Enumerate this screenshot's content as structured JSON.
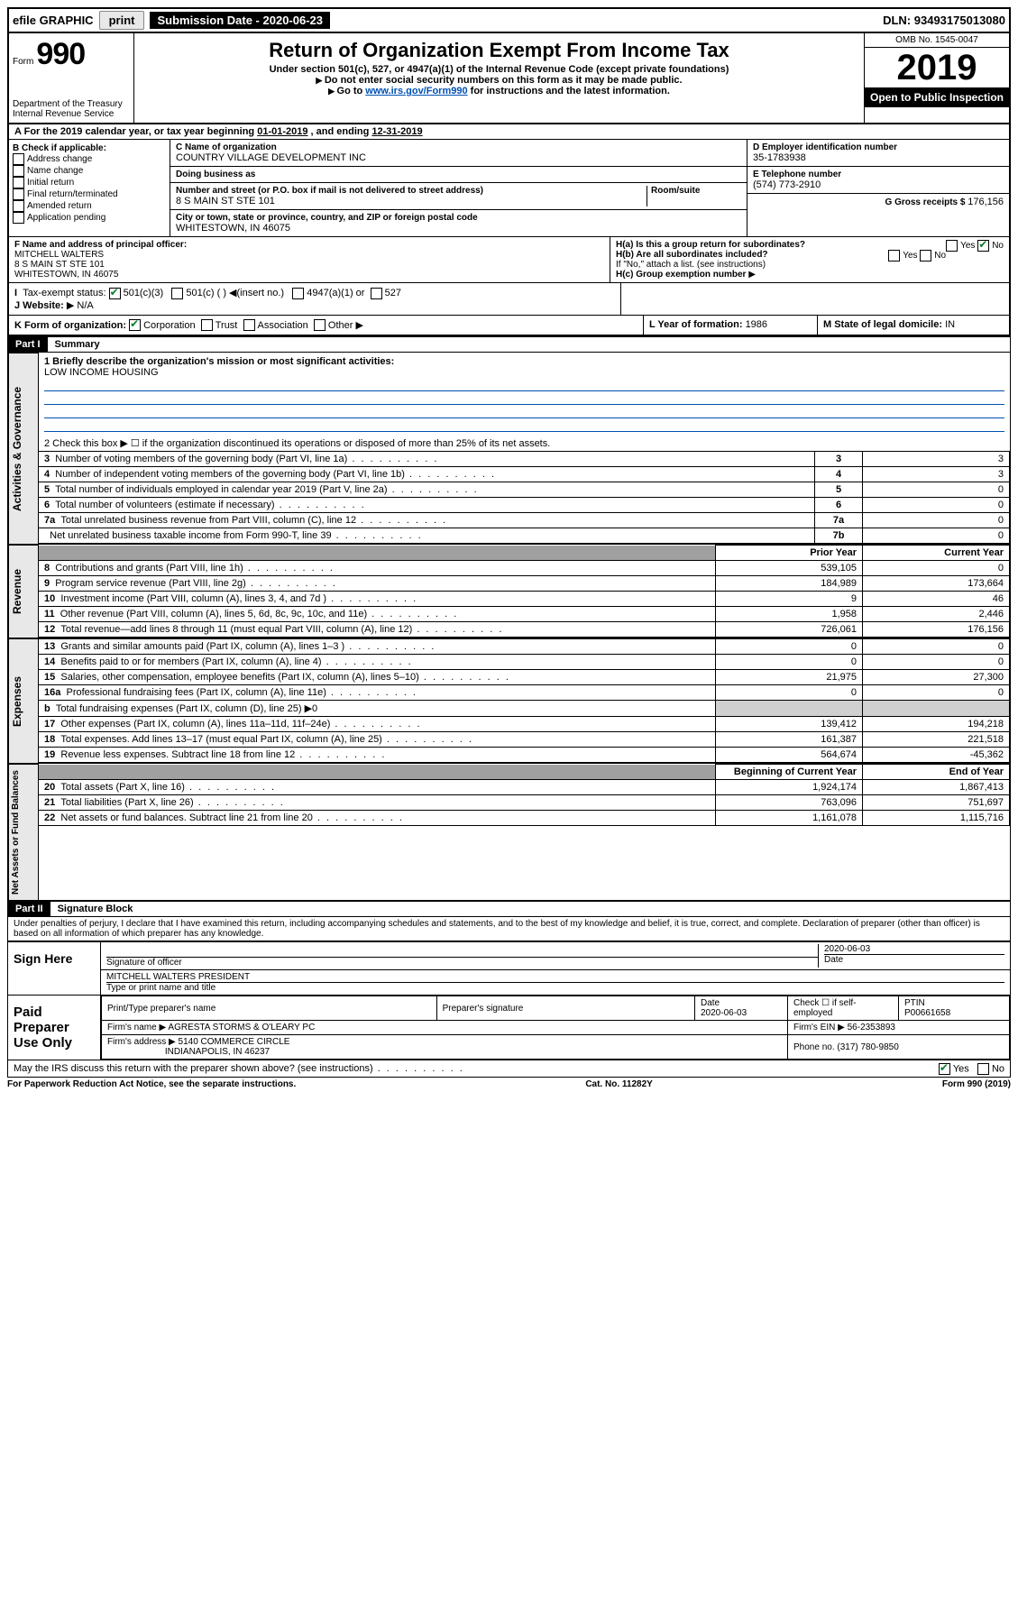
{
  "topbar": {
    "efile": "efile GRAPHIC",
    "print": "print",
    "sub_label": "Submission Date - ",
    "sub_date": "2020-06-23",
    "dln_label": "DLN: ",
    "dln": "93493175013080"
  },
  "header": {
    "form_prefix": "Form",
    "form_num": "990",
    "dept1": "Department of the Treasury",
    "dept2": "Internal Revenue Service",
    "title": "Return of Organization Exempt From Income Tax",
    "sub1": "Under section 501(c), 527, or 4947(a)(1) of the Internal Revenue Code (except private foundations)",
    "sub2": "Do not enter social security numbers on this form as it may be made public.",
    "sub3a": "Go to ",
    "sub3_link": "www.irs.gov/Form990",
    "sub3b": " for instructions and the latest information.",
    "omb": "OMB No. 1545-0047",
    "year": "2019",
    "open": "Open to Public Inspection"
  },
  "period": {
    "text_a": "For the 2019 calendar year, or tax year beginning ",
    "begin": "01-01-2019",
    "text_b": " , and ending ",
    "end": "12-31-2019"
  },
  "box_b": {
    "heading": "B Check if applicable:",
    "opts": [
      "Address change",
      "Name change",
      "Initial return",
      "Final return/terminated",
      "Amended return",
      "Application pending"
    ]
  },
  "box_c": {
    "label": "C Name of organization",
    "name": "COUNTRY VILLAGE DEVELOPMENT INC",
    "dba_label": "Doing business as",
    "addr_label": "Number and street (or P.O. box if mail is not delivered to street address)",
    "room_label": "Room/suite",
    "addr": "8 S MAIN ST STE 101",
    "city_label": "City or town, state or province, country, and ZIP or foreign postal code",
    "city": "WHITESTOWN, IN  46075"
  },
  "box_d": {
    "label": "D Employer identification number",
    "val": "35-1783938"
  },
  "box_e": {
    "label": "E Telephone number",
    "val": "(574) 773-2910"
  },
  "box_g": {
    "label": "G Gross receipts $ ",
    "val": "176,156"
  },
  "box_f": {
    "label": "F  Name and address of principal officer:",
    "name": "MITCHELL WALTERS",
    "addr1": "8 S MAIN ST STE 101",
    "addr2": "WHITESTOWN, IN  46075"
  },
  "box_h": {
    "a_label": "H(a)  Is this a group return for subordinates?",
    "a_yes": "Yes",
    "a_no": "No",
    "b_label": "H(b)  Are all subordinates included?",
    "b_note": "If \"No,\" attach a list. (see instructions)",
    "c_label": "H(c)  Group exemption number"
  },
  "tax_status": {
    "label": "Tax-exempt status:",
    "o1": "501(c)(3)",
    "o2": "501(c) (   )",
    "o2b": "(insert no.)",
    "o3": "4947(a)(1) or",
    "o4": "527"
  },
  "box_j": {
    "label": "J   Website:",
    "val": "N/A"
  },
  "box_k": {
    "label": "K Form of organization:",
    "o1": "Corporation",
    "o2": "Trust",
    "o3": "Association",
    "o4": "Other"
  },
  "box_l": {
    "label": "L Year of formation: ",
    "val": "1986"
  },
  "box_m": {
    "label": "M State of legal domicile: ",
    "val": "IN"
  },
  "part1": {
    "header": "Part I",
    "title": "Summary",
    "line1_label": "1  Briefly describe the organization's mission or most significant activities:",
    "line1_val": "LOW INCOME HOUSING",
    "line2": "2   Check this box ▶ ☐  if the organization discontinued its operations or disposed of more than 25% of its net assets.",
    "tabs": {
      "gov": "Activities & Governance",
      "rev": "Revenue",
      "exp": "Expenses",
      "net": "Net Assets or Fund Balances"
    },
    "gov_rows": [
      {
        "n": "3",
        "d": "Number of voting members of the governing body (Part VI, line 1a)",
        "k": "3",
        "v": "3"
      },
      {
        "n": "4",
        "d": "Number of independent voting members of the governing body (Part VI, line 1b)",
        "k": "4",
        "v": "3"
      },
      {
        "n": "5",
        "d": "Total number of individuals employed in calendar year 2019 (Part V, line 2a)",
        "k": "5",
        "v": "0"
      },
      {
        "n": "6",
        "d": "Total number of volunteers (estimate if necessary)",
        "k": "6",
        "v": "0"
      },
      {
        "n": "7a",
        "d": "Total unrelated business revenue from Part VIII, column (C), line 12",
        "k": "7a",
        "v": "0"
      },
      {
        "n": "",
        "d": "Net unrelated business taxable income from Form 990-T, line 39",
        "k": "7b",
        "v": "0"
      }
    ],
    "col_headers": {
      "prior": "Prior Year",
      "current": "Current Year",
      "boy": "Beginning of Current Year",
      "eoy": "End of Year"
    },
    "rev_rows": [
      {
        "n": "8",
        "d": "Contributions and grants (Part VIII, line 1h)",
        "p": "539,105",
        "c": "0"
      },
      {
        "n": "9",
        "d": "Program service revenue (Part VIII, line 2g)",
        "p": "184,989",
        "c": "173,664"
      },
      {
        "n": "10",
        "d": "Investment income (Part VIII, column (A), lines 3, 4, and 7d )",
        "p": "9",
        "c": "46"
      },
      {
        "n": "11",
        "d": "Other revenue (Part VIII, column (A), lines 5, 6d, 8c, 9c, 10c, and 11e)",
        "p": "1,958",
        "c": "2,446"
      },
      {
        "n": "12",
        "d": "Total revenue—add lines 8 through 11 (must equal Part VIII, column (A), line 12)",
        "p": "726,061",
        "c": "176,156"
      }
    ],
    "exp_rows": [
      {
        "n": "13",
        "d": "Grants and similar amounts paid (Part IX, column (A), lines 1–3 )",
        "p": "0",
        "c": "0"
      },
      {
        "n": "14",
        "d": "Benefits paid to or for members (Part IX, column (A), line 4)",
        "p": "0",
        "c": "0"
      },
      {
        "n": "15",
        "d": "Salaries, other compensation, employee benefits (Part IX, column (A), lines 5–10)",
        "p": "21,975",
        "c": "27,300"
      },
      {
        "n": "16a",
        "d": "Professional fundraising fees (Part IX, column (A), line 11e)",
        "p": "0",
        "c": "0"
      },
      {
        "n": "b",
        "d": "Total fundraising expenses (Part IX, column (D), line 25) ▶0",
        "p": "",
        "c": "",
        "shaded": true
      },
      {
        "n": "17",
        "d": "Other expenses (Part IX, column (A), lines 11a–11d, 11f–24e)",
        "p": "139,412",
        "c": "194,218"
      },
      {
        "n": "18",
        "d": "Total expenses. Add lines 13–17 (must equal Part IX, column (A), line 25)",
        "p": "161,387",
        "c": "221,518"
      },
      {
        "n": "19",
        "d": "Revenue less expenses. Subtract line 18 from line 12",
        "p": "564,674",
        "c": "-45,362"
      }
    ],
    "net_rows": [
      {
        "n": "20",
        "d": "Total assets (Part X, line 16)",
        "p": "1,924,174",
        "c": "1,867,413"
      },
      {
        "n": "21",
        "d": "Total liabilities (Part X, line 26)",
        "p": "763,096",
        "c": "751,697"
      },
      {
        "n": "22",
        "d": "Net assets or fund balances. Subtract line 21 from line 20",
        "p": "1,161,078",
        "c": "1,115,716"
      }
    ]
  },
  "part2": {
    "header": "Part II",
    "title": "Signature Block",
    "perjury": "Under penalties of perjury, I declare that I have examined this return, including accompanying schedules and statements, and to the best of my knowledge and belief, it is true, correct, and complete. Declaration of preparer (other than officer) is based on all information of which preparer has any knowledge."
  },
  "sign": {
    "here": "Sign Here",
    "sig_officer": "Signature of officer",
    "date_label": "Date",
    "date": "2020-06-03",
    "officer_name": "MITCHELL WALTERS  PRESIDENT",
    "type_name": "Type or print name and title"
  },
  "paid": {
    "label": "Paid Preparer Use Only",
    "h1": "Print/Type preparer's name",
    "h2": "Preparer's signature",
    "h3": "Date",
    "date": "2020-06-03",
    "h4": "Check ☐ if self-employed",
    "h5": "PTIN",
    "ptin": "P00661658",
    "firm_name_label": "Firm's name    ▶",
    "firm_name": "AGRESTA STORMS & O'LEARY PC",
    "firm_ein_label": "Firm's EIN ▶",
    "firm_ein": "56-2353893",
    "firm_addr_label": "Firm's address ▶",
    "firm_addr1": "5140 COMMERCE CIRCLE",
    "firm_addr2": "INDIANAPOLIS, IN  46237",
    "phone_label": "Phone no. ",
    "phone": "(317) 780-9850"
  },
  "discuss": {
    "q": "May the IRS discuss this return with the preparer shown above? (see instructions)",
    "yes": "Yes",
    "no": "No"
  },
  "footer": {
    "left": "For Paperwork Reduction Act Notice, see the separate instructions.",
    "mid": "Cat. No. 11282Y",
    "right": "Form 990 (2019)"
  }
}
